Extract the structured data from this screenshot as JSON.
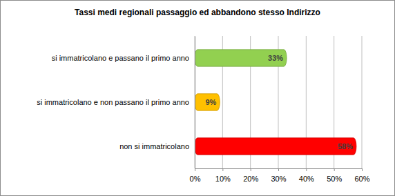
{
  "chart_data": {
    "type": "bar",
    "orientation": "horizontal",
    "title": "Tassi medi regionali passaggio ed abbandono stesso Indirizzo",
    "categories": [
      "si immatricolano e passano il primo anno",
      "si immatricolano e non passano il primo anno",
      "non si immatricolano"
    ],
    "values": [
      33,
      9,
      58
    ],
    "value_labels": [
      "33%",
      "9%",
      "58%"
    ],
    "colors": [
      "#92d050",
      "#ffc000",
      "#ff0000"
    ],
    "xlim": [
      0,
      60
    ],
    "xticks": [
      {
        "value": 0,
        "label": "0%"
      },
      {
        "value": 10,
        "label": "10%"
      },
      {
        "value": 20,
        "label": "20%"
      },
      {
        "value": 30,
        "label": "30%"
      },
      {
        "value": 40,
        "label": "40%"
      },
      {
        "value": 50,
        "label": "50%"
      },
      {
        "value": 60,
        "label": "60%"
      }
    ],
    "grid": true,
    "data_labels": true
  }
}
